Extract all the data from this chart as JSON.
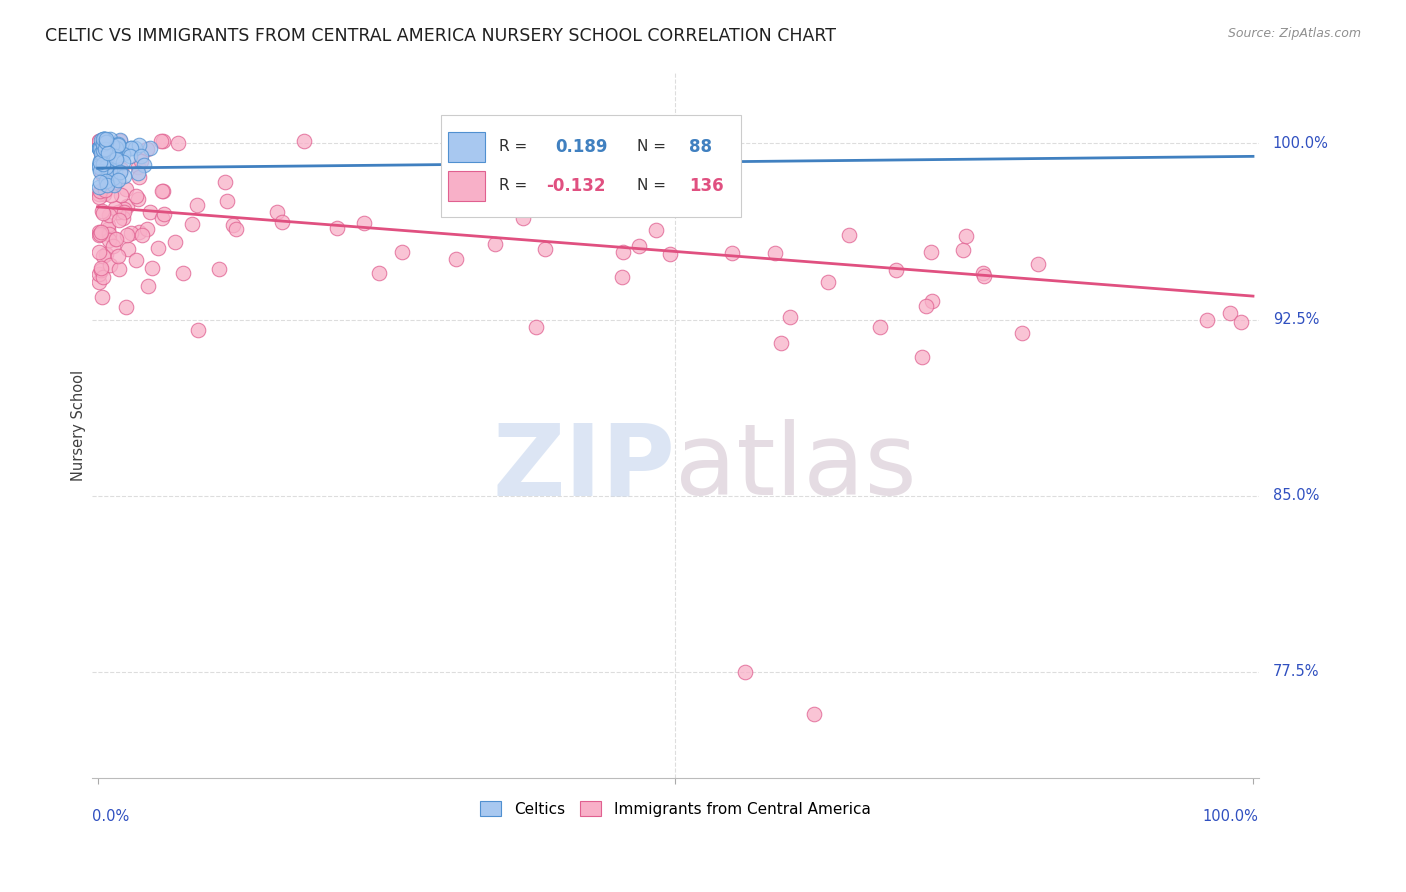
{
  "title": "CELTIC VS IMMIGRANTS FROM CENTRAL AMERICA NURSERY SCHOOL CORRELATION CHART",
  "source": "Source: ZipAtlas.com",
  "ylabel": "Nursery School",
  "ytick_labels": [
    "77.5%",
    "85.0%",
    "92.5%",
    "100.0%"
  ],
  "ytick_values": [
    0.775,
    0.85,
    0.925,
    1.0
  ],
  "legend_labels": [
    "Celtics",
    "Immigrants from Central America"
  ],
  "r_blue": 0.189,
  "n_blue": 88,
  "r_pink": -0.132,
  "n_pink": 136,
  "blue_color": "#A8C8F0",
  "blue_edge_color": "#5090D0",
  "blue_line_color": "#4080C0",
  "pink_color": "#F8B0C8",
  "pink_edge_color": "#E06090",
  "pink_line_color": "#E05080",
  "background_color": "#FFFFFF",
  "title_color": "#202020",
  "source_color": "#909090",
  "axis_label_color": "#3050C0",
  "grid_color": "#DDDDDD",
  "watermark_zip_color": "#C5D5EE",
  "watermark_atlas_color": "#D0C0CC"
}
